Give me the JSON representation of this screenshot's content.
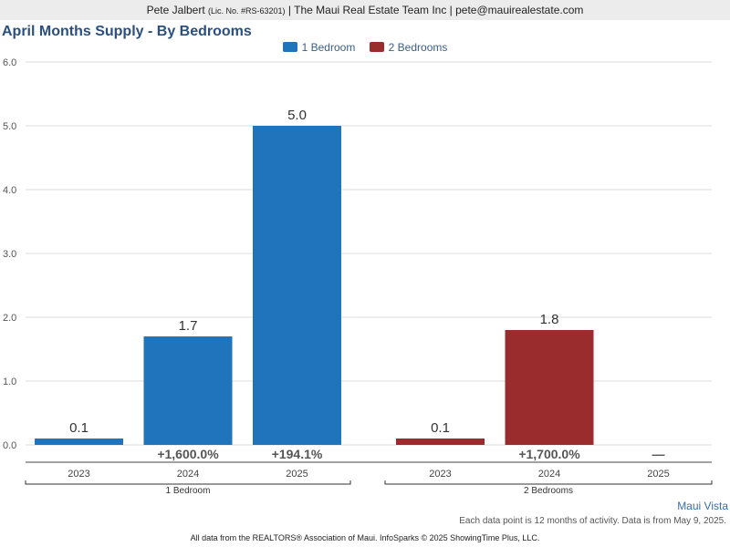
{
  "header": {
    "agent": "Pete Jalbert",
    "license": "(Lic. No. #RS-63201)",
    "company_email": "| The Maui Real Estate Team Inc | pete@mauirealestate.com"
  },
  "legend_entries": [
    {
      "label": "1 Bedroom",
      "color": "#1f74bb"
    },
    {
      "label": "2 Bedrooms",
      "color": "#9b2c2e"
    }
  ],
  "chart_data": {
    "type": "bar",
    "title": "April Months Supply - By Bedrooms",
    "ylim": [
      0,
      6
    ],
    "yticks": [
      "0.0",
      "1.0",
      "2.0",
      "3.0",
      "4.0",
      "5.0",
      "6.0"
    ],
    "grid": true,
    "legend_position": "top-center",
    "groups": [
      {
        "name": "1 Bedroom",
        "color": "#1f74bb",
        "bars": [
          {
            "year": "2023",
            "value": 0.1,
            "label": "0.1",
            "change": ""
          },
          {
            "year": "2024",
            "value": 1.7,
            "label": "1.7",
            "change": "+1,600.0%"
          },
          {
            "year": "2025",
            "value": 5.0,
            "label": "5.0",
            "change": "+194.1%"
          }
        ]
      },
      {
        "name": "2 Bedrooms",
        "color": "#9b2c2e",
        "bars": [
          {
            "year": "2023",
            "value": 0.1,
            "label": "0.1",
            "change": ""
          },
          {
            "year": "2024",
            "value": 1.8,
            "label": "1.8",
            "change": "+1,700.0%"
          },
          {
            "year": "2025",
            "value": null,
            "label": "",
            "change": "—"
          }
        ]
      }
    ]
  },
  "market_name": "Maui Vista",
  "data_note": "Each data point is 12 months of activity. Data is from May 9, 2025.",
  "footer": "All data from the REALTORS® Association of Maui. InfoSparks © 2025 ShowingTime Plus, LLC."
}
